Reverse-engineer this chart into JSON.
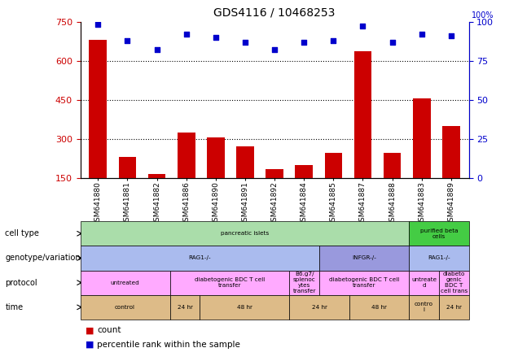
{
  "title": "GDS4116 / 10468253",
  "samples": [
    "GSM641880",
    "GSM641881",
    "GSM641882",
    "GSM641886",
    "GSM641890",
    "GSM641891",
    "GSM641892",
    "GSM641884",
    "GSM641885",
    "GSM641887",
    "GSM641888",
    "GSM641883",
    "GSM641889"
  ],
  "counts": [
    680,
    230,
    165,
    325,
    305,
    270,
    185,
    200,
    245,
    635,
    245,
    455,
    350
  ],
  "percentiles": [
    98,
    88,
    82,
    92,
    90,
    87,
    82,
    87,
    88,
    97,
    87,
    92,
    91
  ],
  "ylim_left": [
    150,
    750
  ],
  "ylim_right": [
    0,
    100
  ],
  "yticks_left": [
    150,
    300,
    450,
    600,
    750
  ],
  "yticks_right": [
    0,
    25,
    50,
    75,
    100
  ],
  "hlines": [
    300,
    450,
    600
  ],
  "bar_color": "#cc0000",
  "dot_color": "#0000cc",
  "left_tick_color": "#cc0000",
  "right_tick_color": "#0000cc",
  "cell_type_row": {
    "label": "cell type",
    "segments": [
      {
        "text": "pancreatic islets",
        "start": 0,
        "end": 11,
        "color": "#aaddaa"
      },
      {
        "text": "purified beta\ncells",
        "start": 11,
        "end": 13,
        "color": "#44cc44"
      }
    ]
  },
  "genotype_row": {
    "label": "genotype/variation",
    "segments": [
      {
        "text": "RAG1-/-",
        "start": 0,
        "end": 8,
        "color": "#aabbee"
      },
      {
        "text": "INFGR-/-",
        "start": 8,
        "end": 11,
        "color": "#9999dd"
      },
      {
        "text": "RAG1-/-",
        "start": 11,
        "end": 13,
        "color": "#aabbee"
      }
    ]
  },
  "protocol_row": {
    "label": "protocol",
    "segments": [
      {
        "text": "untreated",
        "start": 0,
        "end": 3,
        "color": "#ffaaff"
      },
      {
        "text": "diabetogenic BDC T cell\ntransfer",
        "start": 3,
        "end": 7,
        "color": "#ffaaff"
      },
      {
        "text": "B6.g7/\nsplenoc\nytes\ntransfer",
        "start": 7,
        "end": 8,
        "color": "#ffaaff"
      },
      {
        "text": "diabetogenic BDC T cell\ntransfer",
        "start": 8,
        "end": 11,
        "color": "#ffaaff"
      },
      {
        "text": "untreate\nd",
        "start": 11,
        "end": 12,
        "color": "#ffaaff"
      },
      {
        "text": "diabeto\ngenic\nBDC T\ncell trans",
        "start": 12,
        "end": 13,
        "color": "#ffaaff"
      }
    ]
  },
  "time_row": {
    "label": "time",
    "segments": [
      {
        "text": "control",
        "start": 0,
        "end": 3,
        "color": "#ddbb88"
      },
      {
        "text": "24 hr",
        "start": 3,
        "end": 4,
        "color": "#ddbb88"
      },
      {
        "text": "48 hr",
        "start": 4,
        "end": 7,
        "color": "#ddbb88"
      },
      {
        "text": "24 hr",
        "start": 7,
        "end": 9,
        "color": "#ddbb88"
      },
      {
        "text": "48 hr",
        "start": 9,
        "end": 11,
        "color": "#ddbb88"
      },
      {
        "text": "contro\nl",
        "start": 11,
        "end": 12,
        "color": "#ddbb88"
      },
      {
        "text": "24 hr",
        "start": 12,
        "end": 13,
        "color": "#ddbb88"
      }
    ]
  }
}
